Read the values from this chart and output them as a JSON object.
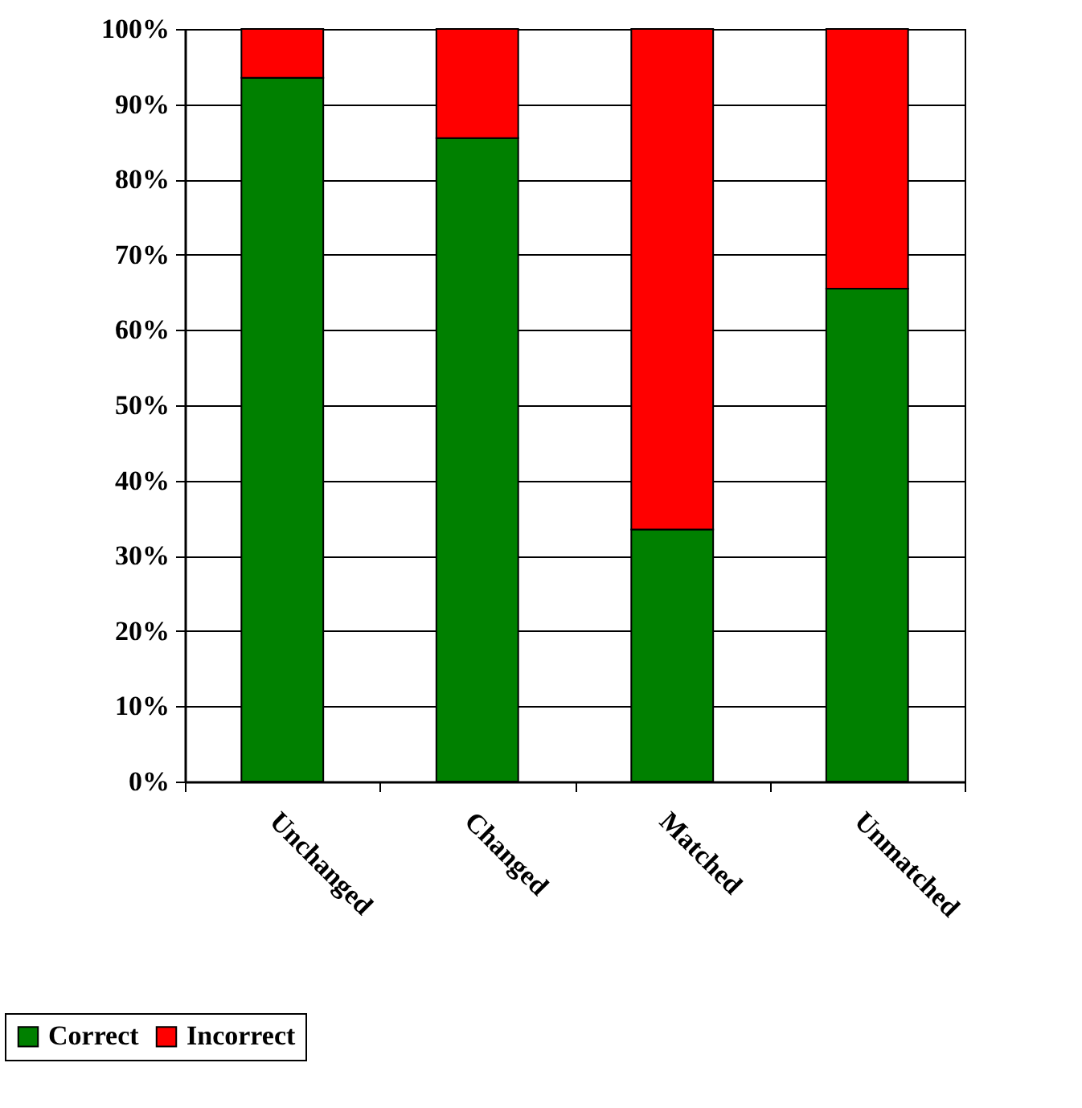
{
  "chart_data": {
    "type": "bar",
    "stacked": true,
    "categories": [
      "Unchanged",
      "Changed",
      "Matched",
      "Unmatched"
    ],
    "series": [
      {
        "name": "Correct",
        "color": "#008000",
        "values": [
          93.5,
          85.5,
          33.5,
          65.5
        ]
      },
      {
        "name": "Incorrect",
        "color": "#ff0000",
        "values": [
          6.5,
          14.5,
          66.5,
          34.5
        ]
      }
    ],
    "ylim": [
      0,
      100
    ],
    "yticks": [
      {
        "value": 0,
        "label": "0%"
      },
      {
        "value": 10,
        "label": "10%"
      },
      {
        "value": 20,
        "label": "20%"
      },
      {
        "value": 30,
        "label": "30%"
      },
      {
        "value": 40,
        "label": "40%"
      },
      {
        "value": 50,
        "label": "50%"
      },
      {
        "value": 60,
        "label": "60%"
      },
      {
        "value": 70,
        "label": "70%"
      },
      {
        "value": 80,
        "label": "80%"
      },
      {
        "value": 90,
        "label": "90%"
      },
      {
        "value": 100,
        "label": "100%"
      }
    ],
    "grid": "y",
    "legend": "bottom left"
  }
}
